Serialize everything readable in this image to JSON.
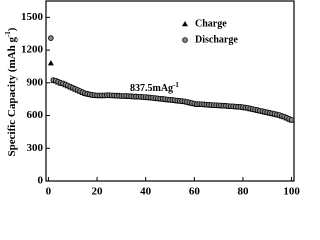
{
  "chart_data": {
    "type": "scatter",
    "y_label": {
      "text": "Specific Capacity (mAh g",
      "sup": "-1",
      "end": ")"
    },
    "annotation": {
      "text": "837.5mAg",
      "sup": "-1"
    },
    "x": [
      1,
      2,
      3,
      4,
      5,
      6,
      7,
      8,
      9,
      10,
      11,
      12,
      13,
      14,
      15,
      16,
      17,
      18,
      19,
      20,
      21,
      22,
      23,
      24,
      25,
      26,
      27,
      28,
      29,
      30,
      31,
      32,
      33,
      34,
      35,
      36,
      37,
      38,
      39,
      40,
      41,
      42,
      43,
      44,
      45,
      46,
      47,
      48,
      49,
      50,
      51,
      52,
      53,
      54,
      55,
      56,
      57,
      58,
      59,
      60,
      61,
      62,
      63,
      64,
      65,
      66,
      67,
      68,
      69,
      70,
      71,
      72,
      73,
      74,
      75,
      76,
      77,
      78,
      79,
      80,
      81,
      82,
      83,
      84,
      85,
      86,
      87,
      88,
      89,
      90,
      91,
      92,
      93,
      94,
      95,
      96,
      97,
      98,
      99,
      100
    ],
    "series": [
      {
        "name": "Charge",
        "color": "#000000",
        "marker": "triangle",
        "values": [
          1080,
          920,
          915,
          905,
          895,
          890,
          880,
          870,
          860,
          850,
          840,
          830,
          820,
          810,
          800,
          795,
          790,
          785,
          782,
          780,
          780,
          780,
          780,
          782,
          782,
          780,
          780,
          778,
          778,
          775,
          775,
          775,
          772,
          772,
          770,
          770,
          768,
          768,
          765,
          765,
          762,
          760,
          758,
          755,
          752,
          750,
          748,
          745,
          742,
          740,
          738,
          735,
          732,
          730,
          728,
          725,
          720,
          715,
          710,
          705,
          700,
          700,
          698,
          698,
          695,
          695,
          692,
          690,
          690,
          688,
          688,
          685,
          685,
          682,
          680,
          680,
          678,
          676,
          675,
          672,
          668,
          665,
          660,
          655,
          650,
          645,
          640,
          635,
          630,
          625,
          620,
          615,
          610,
          605,
          600,
          592,
          585,
          575,
          565,
          555
        ]
      },
      {
        "name": "Discharge",
        "color": "#888888",
        "marker": "circle",
        "values": [
          1310,
          925,
          920,
          910,
          900,
          895,
          885,
          875,
          865,
          855,
          845,
          835,
          825,
          815,
          805,
          800,
          795,
          790,
          787,
          785,
          785,
          785,
          785,
          787,
          787,
          785,
          785,
          783,
          783,
          780,
          780,
          780,
          777,
          777,
          775,
          775,
          773,
          773,
          770,
          770,
          767,
          765,
          763,
          760,
          757,
          755,
          753,
          750,
          747,
          745,
          743,
          740,
          737,
          735,
          733,
          730,
          725,
          720,
          715,
          710,
          705,
          705,
          703,
          703,
          700,
          700,
          697,
          695,
          695,
          693,
          693,
          690,
          690,
          687,
          685,
          685,
          683,
          681,
          680,
          677,
          673,
          670,
          665,
          660,
          655,
          650,
          645,
          640,
          635,
          630,
          625,
          620,
          615,
          610,
          605,
          597,
          590,
          580,
          570,
          560
        ]
      }
    ],
    "xlim": [
      -1,
      101
    ],
    "ylim": [
      0,
      1650
    ],
    "xticks": [
      0,
      20,
      40,
      60,
      80,
      100
    ],
    "yticks": [
      0,
      300,
      600,
      900,
      1200,
      1500
    ],
    "legend": "upper right"
  }
}
